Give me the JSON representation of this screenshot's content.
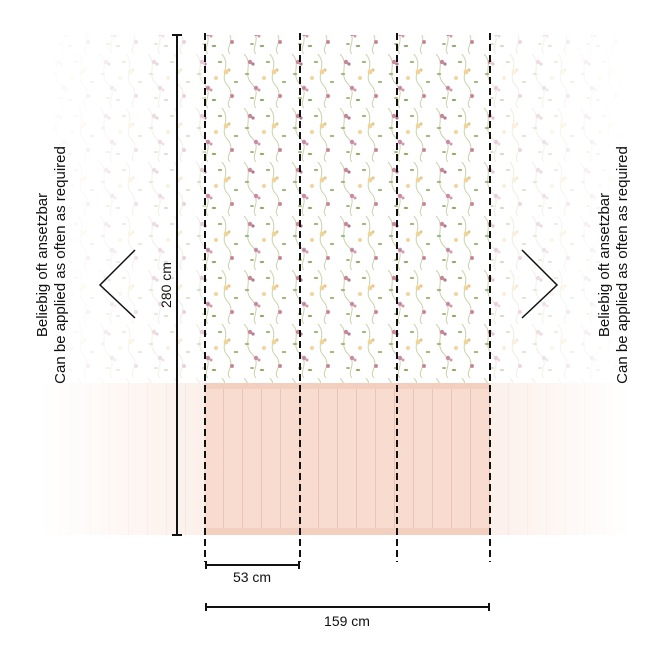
{
  "diagram": {
    "height_label": "280 cm",
    "panel_width_label": "53 cm",
    "total_width_label": "159 cm",
    "repeat_note": [
      "Beliebig oft ansetzbar",
      "Can be applied as often as required"
    ],
    "panel_count": 3,
    "colors": {
      "background": "#ffffff",
      "wainscot": "#f8dccf",
      "wainscot_line": "#e9c4b3",
      "flower_pink": "#c9879a",
      "flower_yellow": "#f0d49c",
      "leaf_green": "#9fb77a",
      "line": "#111111"
    },
    "icons": [
      "chevron-left-icon",
      "chevron-right-icon"
    ]
  }
}
